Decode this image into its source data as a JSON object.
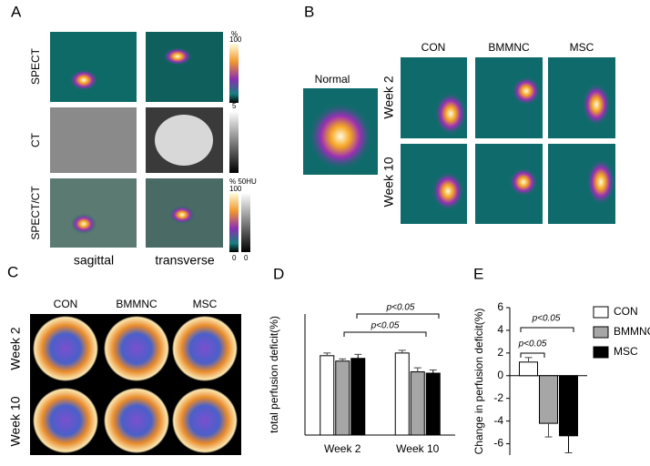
{
  "panels": {
    "A": {
      "label": "A",
      "row_labels": [
        "SPECT",
        "CT",
        "SPECT/CT"
      ],
      "column_labels": [
        "sagittal",
        "transverse"
      ],
      "colorbar_labels": [
        "%",
        "100",
        "5",
        "% 50HU",
        "100",
        "0",
        "0"
      ]
    },
    "B": {
      "label": "B",
      "reference_label": "Normal",
      "column_labels": [
        "CON",
        "BMMNC",
        "MSC"
      ],
      "row_labels": [
        "Week 2",
        "Week 10"
      ]
    },
    "C": {
      "label": "C",
      "column_labels": [
        "CON",
        "BMMNC",
        "MSC"
      ],
      "row_labels": [
        "Week 2",
        "Week 10"
      ]
    },
    "D": {
      "label": "D"
    },
    "E": {
      "label": "E"
    }
  },
  "chart_data": [
    {
      "type": "bar",
      "y_label": "total perfusion deficit(%)",
      "categories": [
        "Week 2",
        "Week 10"
      ],
      "series": [
        {
          "name": "CON",
          "color": "#ffffff",
          "values": [
            29.5,
            30.5
          ],
          "errors": [
            1.0,
            1.0
          ]
        },
        {
          "name": "BMMNC",
          "color": "#a6a6a6",
          "values": [
            27.5,
            23.5
          ],
          "errors": [
            0.8,
            1.5
          ]
        },
        {
          "name": "MSC",
          "color": "#000000",
          "values": [
            28.5,
            23.0
          ],
          "errors": [
            1.5,
            1.2
          ]
        }
      ],
      "ylim": [
        0,
        45
      ],
      "annotations": [
        "p<0.05",
        "p<0.05"
      ]
    },
    {
      "type": "bar",
      "y_label": "Change in perfusion deficit(%)",
      "categories": [
        null
      ],
      "series": [
        {
          "name": "CON",
          "color": "#ffffff",
          "values": [
            1.2
          ],
          "errors": [
            0.4
          ]
        },
        {
          "name": "BMMNC",
          "color": "#a6a6a6",
          "values": [
            -4.2
          ],
          "errors": [
            1.2
          ]
        },
        {
          "name": "MSC",
          "color": "#000000",
          "values": [
            -5.3
          ],
          "errors": [
            1.5
          ]
        }
      ],
      "ylim": [
        -7,
        6
      ],
      "yticks": [
        -6,
        -4,
        -2,
        0,
        2,
        4,
        6
      ],
      "legend": "right",
      "annotations": [
        "p<0.05",
        "p<0.05"
      ]
    }
  ]
}
